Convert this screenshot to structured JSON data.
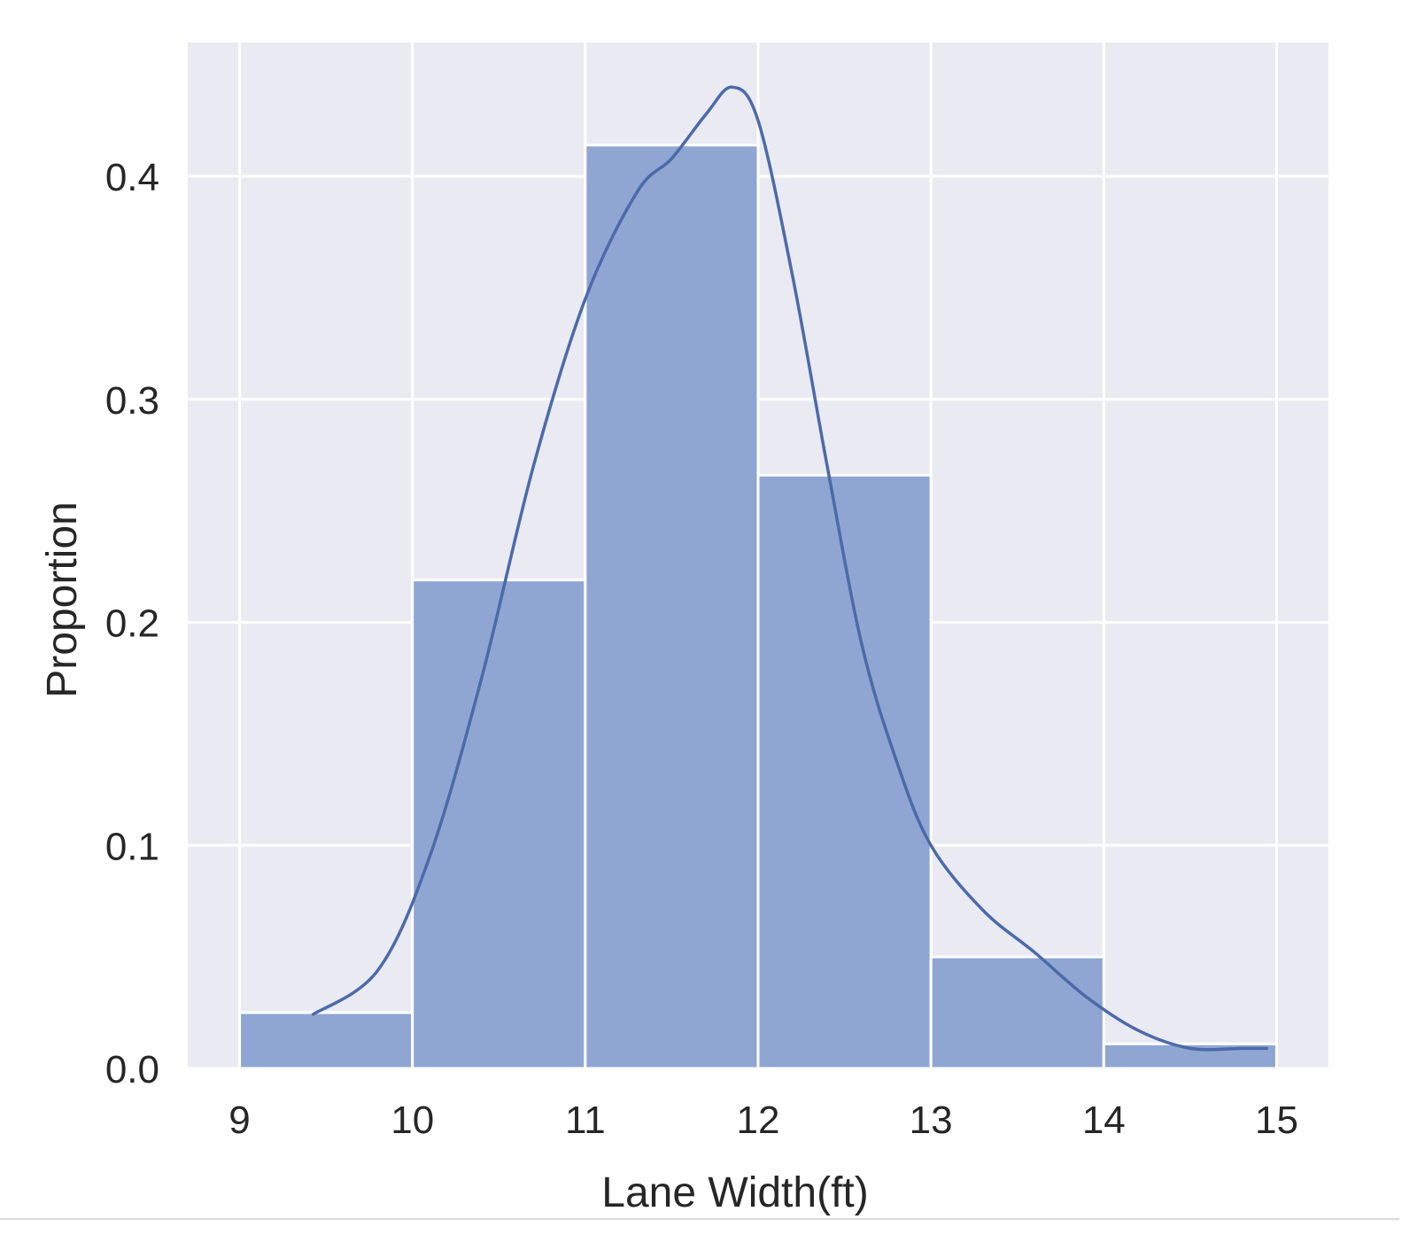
{
  "chart_data": {
    "type": "bar",
    "subtype": "histogram-with-kde",
    "title": "",
    "xlabel": "Lane Width(ft)",
    "ylabel": "Proportion",
    "xlim": [
      8.7,
      15.3
    ],
    "ylim": [
      0,
      0.46
    ],
    "xticks": [
      9,
      10,
      11,
      12,
      13,
      14,
      15
    ],
    "xtick_labels": [
      "9",
      "10",
      "11",
      "12",
      "13",
      "14",
      "15"
    ],
    "yticks": [
      0.0,
      0.1,
      0.2,
      0.3,
      0.4
    ],
    "ytick_labels": [
      "0.0",
      "0.1",
      "0.2",
      "0.3",
      "0.4"
    ],
    "bins": [
      {
        "x0": 9,
        "x1": 10,
        "value": 0.025
      },
      {
        "x0": 10,
        "x1": 11,
        "value": 0.219
      },
      {
        "x0": 11,
        "x1": 12,
        "value": 0.414
      },
      {
        "x0": 12,
        "x1": 13,
        "value": 0.266
      },
      {
        "x0": 13,
        "x1": 14,
        "value": 0.05
      },
      {
        "x0": 14,
        "x1": 15,
        "value": 0.011
      }
    ],
    "kde": {
      "x": [
        9.42,
        9.8,
        10.1,
        10.4,
        10.7,
        11.0,
        11.3,
        11.5,
        11.7,
        11.85,
        12.0,
        12.2,
        12.4,
        12.6,
        12.8,
        13.0,
        13.3,
        13.6,
        13.9,
        14.2,
        14.5,
        14.8,
        14.95
      ],
      "y": [
        0.024,
        0.044,
        0.095,
        0.175,
        0.27,
        0.345,
        0.393,
        0.408,
        0.428,
        0.44,
        0.425,
        0.355,
        0.27,
        0.19,
        0.138,
        0.1,
        0.071,
        0.052,
        0.032,
        0.017,
        0.009,
        0.009,
        0.009
      ]
    },
    "grid": true,
    "legend": "none",
    "colors": {
      "bar_fill": "#8fa6d3",
      "line": "#4c6aa8",
      "plot_background": "#eaeaf2",
      "grid": "#ffffff"
    }
  }
}
